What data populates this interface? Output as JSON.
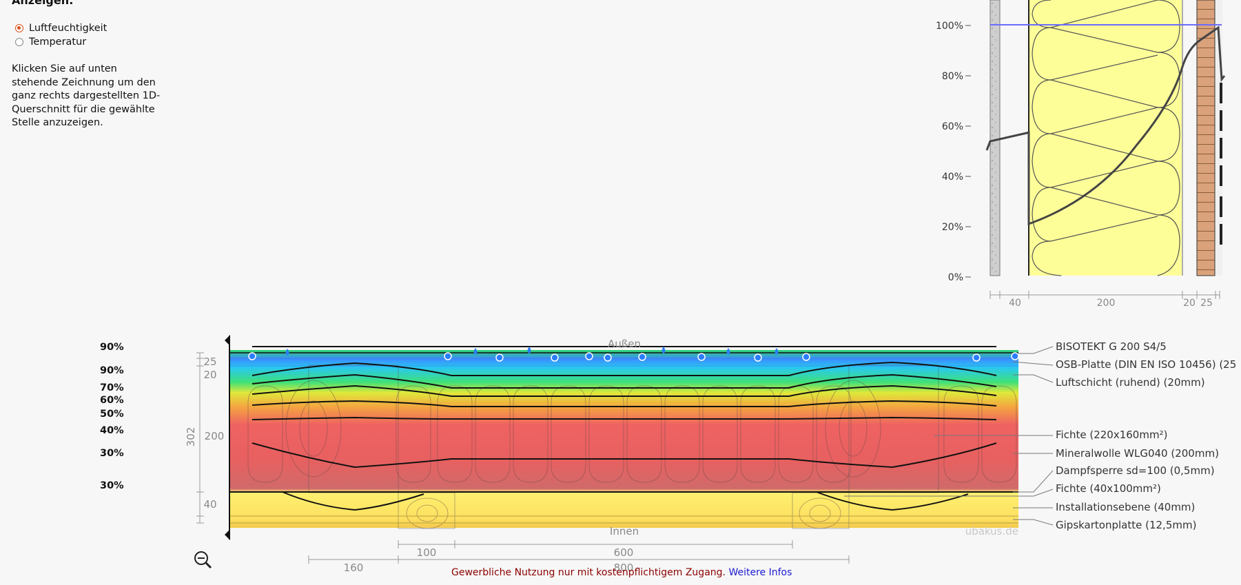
{
  "panel": {
    "heading": "Anzeigen:",
    "options": [
      {
        "label": "Luftfeuchtigkeit",
        "selected": true
      },
      {
        "label": "Temperatur",
        "selected": false
      }
    ],
    "help_text": "Klicken Sie auf unten stehende Zeichnung um den ganz rechts dargestellten 1D-Querschnitt für die gewählte Stelle anzuzeigen."
  },
  "profile": {
    "y_ticks": [
      "100%",
      "80%",
      "60%",
      "40%",
      "20%",
      "0%"
    ],
    "dims": [
      "40",
      "200",
      "20",
      "25"
    ]
  },
  "section": {
    "outside_label": "Außen",
    "inside_label": "Innen",
    "watermark": "ubakus.de",
    "left_dims": [
      "25",
      "20",
      "200",
      "40"
    ],
    "total_dim": "302",
    "bottom_dims": [
      "100",
      "600",
      "160",
      "800"
    ],
    "humidity_labels": [
      "90%",
      "90%",
      "70%",
      "60%",
      "50%",
      "40%",
      "30%",
      "30%"
    ],
    "layers": [
      "BISOTEKT G 200 S4/5",
      "OSB-Platte (DIN EN ISO 10456) (25",
      "Luftschicht (ruhend) (20mm)",
      "Fichte (220x160mm²)",
      "Mineralwolle WLG040 (200mm)",
      "Dampfsperre sd=100 (0,5mm)",
      "Fichte (40x100mm²)",
      "Installationsebene (40mm)",
      "Gipskartonplatte (12,5mm)"
    ]
  },
  "footer": {
    "text": "Gewerbliche Nutzung nur mit kostenpflichtigem Zugang.",
    "link": "Weitere Infos"
  },
  "colors": {
    "accent_radio": "#d9531e",
    "insulation": "#fefe99",
    "wood": "#d9a27a",
    "moisture_line": "#6b6bff",
    "footer_text": "#8b0000",
    "footer_link": "#1a1ad0"
  }
}
